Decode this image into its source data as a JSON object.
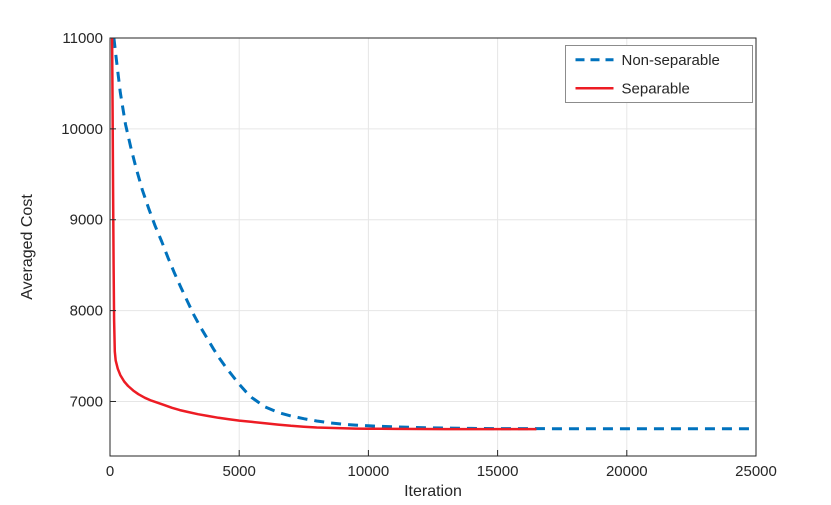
{
  "chart_data": {
    "type": "line",
    "title": "",
    "xlabel": "Iteration",
    "ylabel": "Averaged Cost",
    "xlim": [
      0,
      25000
    ],
    "ylim": [
      6400,
      11000
    ],
    "xticks": [
      0,
      5000,
      10000,
      15000,
      20000,
      25000
    ],
    "yticks": [
      7000,
      8000,
      9000,
      10000,
      11000
    ],
    "grid": true,
    "legend_position": "top-right",
    "colors": {
      "grid": "#e6e6e6",
      "axis": "#262626",
      "legend_border": "#8c8c8c",
      "background": "#ffffff"
    },
    "series": [
      {
        "name": "Non-separable",
        "color": "#0072bd",
        "style": "dashed",
        "width": 3,
        "points": [
          [
            150,
            11000
          ],
          [
            250,
            10750
          ],
          [
            400,
            10400
          ],
          [
            600,
            10050
          ],
          [
            800,
            9800
          ],
          [
            1000,
            9580
          ],
          [
            1250,
            9330
          ],
          [
            1500,
            9120
          ],
          [
            1750,
            8930
          ],
          [
            2000,
            8760
          ],
          [
            2250,
            8580
          ],
          [
            2500,
            8410
          ],
          [
            2750,
            8250
          ],
          [
            3000,
            8100
          ],
          [
            3250,
            7950
          ],
          [
            3500,
            7820
          ],
          [
            3750,
            7700
          ],
          [
            4000,
            7580
          ],
          [
            4250,
            7470
          ],
          [
            4500,
            7370
          ],
          [
            4750,
            7280
          ],
          [
            5000,
            7190
          ],
          [
            5250,
            7110
          ],
          [
            5500,
            7040
          ],
          [
            5750,
            6990
          ],
          [
            6000,
            6940
          ],
          [
            6500,
            6880
          ],
          [
            7000,
            6840
          ],
          [
            7500,
            6810
          ],
          [
            8000,
            6785
          ],
          [
            8500,
            6765
          ],
          [
            9000,
            6750
          ],
          [
            9500,
            6740
          ],
          [
            10000,
            6732
          ],
          [
            11000,
            6720
          ],
          [
            12000,
            6712
          ],
          [
            13000,
            6707
          ],
          [
            14000,
            6704
          ],
          [
            15000,
            6702
          ],
          [
            16000,
            6701
          ],
          [
            17000,
            6700
          ],
          [
            18000,
            6700
          ],
          [
            19000,
            6700
          ],
          [
            20000,
            6700
          ],
          [
            21000,
            6700
          ],
          [
            22000,
            6700
          ],
          [
            23000,
            6700
          ],
          [
            24000,
            6700
          ],
          [
            25000,
            6700
          ]
        ]
      },
      {
        "name": "Separable",
        "color": "#ed1c24",
        "style": "solid",
        "width": 2.5,
        "points": [
          [
            80,
            11000
          ],
          [
            100,
            10200
          ],
          [
            120,
            9300
          ],
          [
            140,
            8500
          ],
          [
            160,
            7900
          ],
          [
            185,
            7550
          ],
          [
            220,
            7450
          ],
          [
            300,
            7360
          ],
          [
            400,
            7290
          ],
          [
            550,
            7220
          ],
          [
            700,
            7170
          ],
          [
            900,
            7120
          ],
          [
            1100,
            7080
          ],
          [
            1350,
            7040
          ],
          [
            1600,
            7010
          ],
          [
            1850,
            6985
          ],
          [
            2100,
            6960
          ],
          [
            2400,
            6930
          ],
          [
            2700,
            6905
          ],
          [
            3000,
            6885
          ],
          [
            3400,
            6860
          ],
          [
            3800,
            6840
          ],
          [
            4200,
            6820
          ],
          [
            4600,
            6805
          ],
          [
            5000,
            6790
          ],
          [
            5500,
            6775
          ],
          [
            6000,
            6760
          ],
          [
            6500,
            6745
          ],
          [
            7000,
            6732
          ],
          [
            7500,
            6722
          ],
          [
            8000,
            6714
          ],
          [
            8500,
            6709
          ],
          [
            9000,
            6705
          ],
          [
            9500,
            6702
          ],
          [
            10000,
            6700
          ],
          [
            11000,
            6698
          ],
          [
            12000,
            6697
          ],
          [
            13000,
            6696
          ],
          [
            14000,
            6696
          ],
          [
            15000,
            6696
          ],
          [
            16000,
            6696
          ],
          [
            16500,
            6696
          ]
        ]
      }
    ]
  }
}
